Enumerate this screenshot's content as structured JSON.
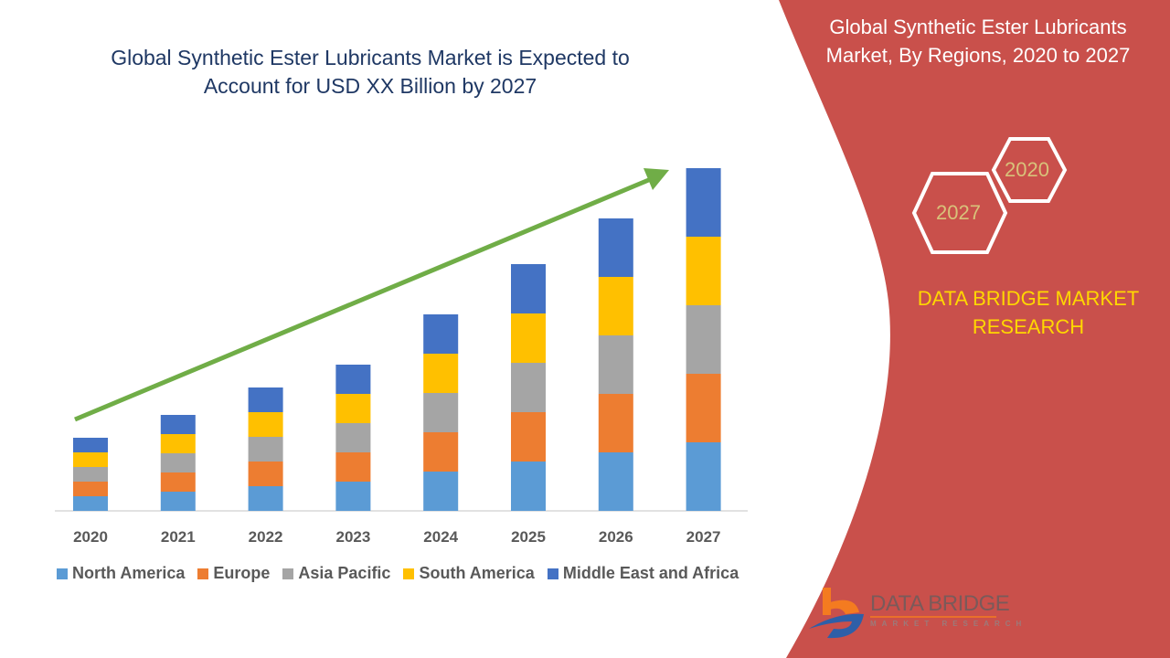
{
  "title": "Global Synthetic Ester Lubricants Market is Expected to Account for USD XX Billion by 2027",
  "side_title": "Global Synthetic Ester Lubricants Market, By Regions, 2020 to 2027",
  "hex_labels": [
    "2020",
    "2027"
  ],
  "brand_text": "DATA BRIDGE MARKET RESEARCH",
  "logo": {
    "name": "DATA BRIDGE",
    "tagline": "MARKET RESEARCH"
  },
  "colors": {
    "panel": "#c9504b",
    "arrow": "#70ad47",
    "title": "#1f3864",
    "brand": "#ffd700"
  },
  "chart_data": {
    "type": "bar",
    "stacked": true,
    "title": "Global Synthetic Ester Lubricants Market is Expected to Account for USD XX Billion by 2027",
    "xlabel": "",
    "ylabel": "",
    "categories": [
      "2020",
      "2021",
      "2022",
      "2023",
      "2024",
      "2025",
      "2026",
      "2027"
    ],
    "series": [
      {
        "name": "North America",
        "color": "#5b9bd5",
        "values": [
          16,
          21,
          27,
          32,
          43,
          54,
          64,
          75
        ]
      },
      {
        "name": "Europe",
        "color": "#ed7d31",
        "values": [
          16,
          21,
          27,
          32,
          43,
          54,
          64,
          75
        ]
      },
      {
        "name": "Asia Pacific",
        "color": "#a5a5a5",
        "values": [
          16,
          21,
          27,
          32,
          43,
          54,
          64,
          75
        ]
      },
      {
        "name": "South America",
        "color": "#ffc000",
        "values": [
          16,
          21,
          27,
          32,
          43,
          54,
          64,
          75
        ]
      },
      {
        "name": "Middle East and Africa",
        "color": "#4472c4",
        "values": [
          16,
          21,
          27,
          32,
          43,
          54,
          64,
          75
        ]
      }
    ],
    "ylim": [
      0,
      375
    ],
    "grid": false,
    "legend": "bottom",
    "annotations": [
      "upward trend arrow"
    ]
  }
}
